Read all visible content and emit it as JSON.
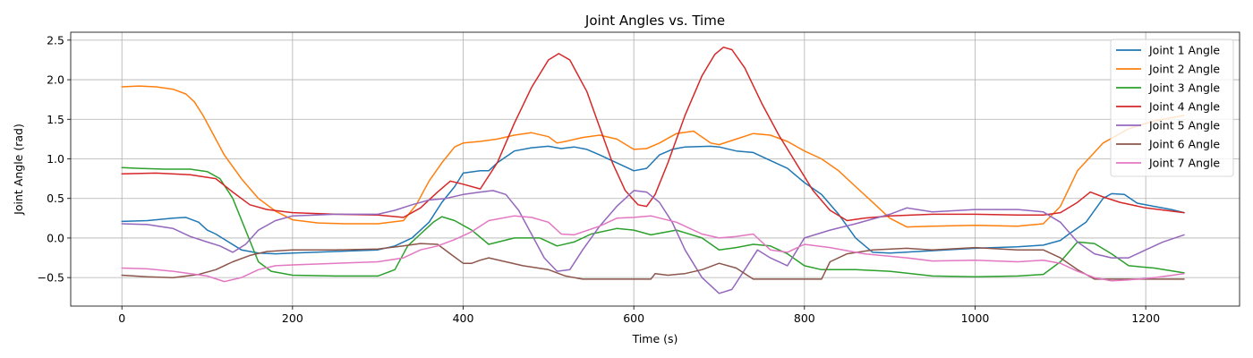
{
  "chart_data": {
    "type": "line",
    "title": "Joint Angles vs. Time",
    "xlabel": "Time (s)",
    "ylabel": "Joint Angle (rad)",
    "xlim": [
      -60,
      1310
    ],
    "ylim": [
      -0.86,
      2.6
    ],
    "xticks": [
      0,
      200,
      400,
      600,
      800,
      1000,
      1200
    ],
    "yticks": [
      -0.5,
      0.0,
      0.5,
      1.0,
      1.5,
      2.0,
      2.5
    ],
    "ytick_labels": [
      "−0.5",
      "0.0",
      "0.5",
      "1.0",
      "1.5",
      "2.0",
      "2.5"
    ],
    "grid": true,
    "legend_position": "top-right",
    "series": [
      {
        "name": "Joint 1 Angle",
        "color": "#1f77b4",
        "x": [
          0,
          30,
          60,
          75,
          90,
          100,
          110,
          125,
          140,
          160,
          180,
          200,
          250,
          300,
          320,
          340,
          360,
          375,
          390,
          400,
          420,
          430,
          440,
          460,
          480,
          500,
          515,
          530,
          545,
          560,
          580,
          600,
          615,
          630,
          645,
          660,
          690,
          700,
          720,
          740,
          760,
          780,
          800,
          820,
          840,
          860,
          880,
          900,
          950,
          1000,
          1050,
          1080,
          1100,
          1110,
          1130,
          1150,
          1160,
          1175,
          1190,
          1210,
          1230,
          1245
        ],
        "y": [
          0.21,
          0.22,
          0.25,
          0.26,
          0.2,
          0.1,
          0.05,
          -0.05,
          -0.15,
          -0.19,
          -0.2,
          -0.19,
          -0.17,
          -0.15,
          -0.1,
          0.0,
          0.2,
          0.45,
          0.65,
          0.82,
          0.85,
          0.85,
          0.95,
          1.1,
          1.14,
          1.16,
          1.13,
          1.15,
          1.12,
          1.05,
          0.95,
          0.85,
          0.88,
          1.05,
          1.12,
          1.15,
          1.16,
          1.15,
          1.1,
          1.08,
          0.98,
          0.88,
          0.7,
          0.55,
          0.3,
          0.0,
          -0.18,
          -0.19,
          -0.16,
          -0.13,
          -0.11,
          -0.09,
          -0.03,
          0.05,
          0.2,
          0.5,
          0.56,
          0.55,
          0.44,
          0.4,
          0.36,
          0.32
        ]
      },
      {
        "name": "Joint 2 Angle",
        "color": "#ff7f0e",
        "x": [
          0,
          20,
          40,
          60,
          75,
          85,
          95,
          105,
          120,
          140,
          160,
          180,
          200,
          230,
          260,
          300,
          330,
          345,
          360,
          375,
          390,
          400,
          420,
          440,
          460,
          480,
          500,
          510,
          520,
          540,
          560,
          580,
          600,
          615,
          630,
          650,
          670,
          690,
          700,
          720,
          740,
          760,
          780,
          800,
          820,
          840,
          860,
          880,
          900,
          920,
          950,
          1000,
          1050,
          1080,
          1100,
          1120,
          1150,
          1180,
          1210,
          1245
        ],
        "y": [
          1.91,
          1.92,
          1.91,
          1.88,
          1.82,
          1.72,
          1.55,
          1.35,
          1.05,
          0.75,
          0.5,
          0.34,
          0.23,
          0.19,
          0.18,
          0.18,
          0.22,
          0.42,
          0.72,
          0.95,
          1.15,
          1.2,
          1.22,
          1.25,
          1.3,
          1.33,
          1.28,
          1.2,
          1.22,
          1.27,
          1.3,
          1.25,
          1.12,
          1.13,
          1.2,
          1.32,
          1.35,
          1.2,
          1.18,
          1.25,
          1.32,
          1.3,
          1.22,
          1.1,
          1.0,
          0.85,
          0.65,
          0.45,
          0.25,
          0.14,
          0.15,
          0.16,
          0.15,
          0.18,
          0.4,
          0.85,
          1.2,
          1.38,
          1.48,
          1.55
        ]
      },
      {
        "name": "Joint 3 Angle",
        "color": "#2ca02c",
        "x": [
          0,
          20,
          50,
          80,
          100,
          115,
          130,
          145,
          160,
          175,
          200,
          250,
          300,
          320,
          335,
          350,
          365,
          375,
          390,
          410,
          430,
          460,
          490,
          510,
          530,
          550,
          580,
          600,
          620,
          650,
          680,
          700,
          720,
          740,
          760,
          780,
          800,
          820,
          860,
          900,
          950,
          1000,
          1050,
          1080,
          1100,
          1120,
          1140,
          1160,
          1180,
          1210,
          1245
        ],
        "y": [
          0.89,
          0.88,
          0.87,
          0.87,
          0.84,
          0.75,
          0.5,
          0.1,
          -0.3,
          -0.42,
          -0.47,
          -0.48,
          -0.48,
          -0.4,
          -0.1,
          0.05,
          0.2,
          0.27,
          0.22,
          0.1,
          -0.08,
          0.0,
          0.0,
          -0.1,
          -0.05,
          0.05,
          0.12,
          0.1,
          0.04,
          0.1,
          0.0,
          -0.15,
          -0.12,
          -0.08,
          -0.1,
          -0.2,
          -0.35,
          -0.4,
          -0.4,
          -0.42,
          -0.48,
          -0.49,
          -0.48,
          -0.46,
          -0.3,
          -0.05,
          -0.07,
          -0.2,
          -0.35,
          -0.38,
          -0.44
        ]
      },
      {
        "name": "Joint 4 Angle",
        "color": "#d62728",
        "x": [
          0,
          40,
          80,
          110,
          130,
          150,
          170,
          200,
          250,
          300,
          330,
          350,
          370,
          385,
          400,
          420,
          440,
          460,
          480,
          500,
          512,
          525,
          545,
          560,
          575,
          590,
          605,
          615,
          625,
          640,
          660,
          680,
          695,
          705,
          715,
          730,
          750,
          770,
          790,
          810,
          830,
          850,
          870,
          900,
          950,
          1000,
          1050,
          1080,
          1100,
          1120,
          1135,
          1150,
          1170,
          1200,
          1245
        ],
        "y": [
          0.81,
          0.82,
          0.8,
          0.75,
          0.58,
          0.42,
          0.36,
          0.32,
          0.3,
          0.29,
          0.26,
          0.38,
          0.58,
          0.72,
          0.68,
          0.62,
          0.95,
          1.45,
          1.9,
          2.25,
          2.33,
          2.25,
          1.85,
          1.4,
          0.95,
          0.6,
          0.42,
          0.4,
          0.55,
          0.95,
          1.55,
          2.05,
          2.32,
          2.41,
          2.38,
          2.15,
          1.7,
          1.3,
          0.95,
          0.6,
          0.35,
          0.22,
          0.25,
          0.28,
          0.3,
          0.3,
          0.29,
          0.29,
          0.32,
          0.45,
          0.58,
          0.52,
          0.45,
          0.38,
          0.32
        ]
      },
      {
        "name": "Joint 5 Angle",
        "color": "#9467bd",
        "x": [
          0,
          30,
          60,
          80,
          100,
          115,
          130,
          145,
          160,
          180,
          200,
          250,
          300,
          320,
          340,
          360,
          380,
          400,
          420,
          435,
          450,
          465,
          480,
          495,
          510,
          525,
          540,
          560,
          580,
          600,
          615,
          630,
          645,
          660,
          680,
          700,
          715,
          730,
          745,
          760,
          780,
          800,
          830,
          860,
          900,
          920,
          950,
          1000,
          1050,
          1080,
          1100,
          1120,
          1140,
          1160,
          1180,
          1200,
          1220,
          1245
        ],
        "y": [
          0.18,
          0.17,
          0.12,
          0.02,
          -0.05,
          -0.1,
          -0.18,
          -0.08,
          0.1,
          0.22,
          0.28,
          0.3,
          0.3,
          0.35,
          0.42,
          0.48,
          0.5,
          0.55,
          0.58,
          0.6,
          0.55,
          0.35,
          0.05,
          -0.25,
          -0.42,
          -0.4,
          -0.15,
          0.15,
          0.4,
          0.6,
          0.58,
          0.45,
          0.2,
          -0.15,
          -0.5,
          -0.7,
          -0.65,
          -0.4,
          -0.15,
          -0.25,
          -0.35,
          0.0,
          0.1,
          0.18,
          0.3,
          0.38,
          0.33,
          0.36,
          0.36,
          0.33,
          0.2,
          -0.05,
          -0.2,
          -0.25,
          -0.25,
          -0.15,
          -0.05,
          0.04
        ]
      },
      {
        "name": "Joint 6 Angle",
        "color": "#8c564b",
        "x": [
          0,
          30,
          60,
          90,
          110,
          130,
          150,
          170,
          200,
          250,
          300,
          330,
          350,
          370,
          385,
          400,
          410,
          420,
          430,
          450,
          470,
          500,
          520,
          540,
          560,
          600,
          620,
          625,
          640,
          660,
          680,
          700,
          720,
          740,
          760,
          780,
          800,
          820,
          830,
          850,
          880,
          920,
          950,
          1000,
          1050,
          1080,
          1100,
          1120,
          1140,
          1160,
          1200,
          1245
        ],
        "y": [
          -0.47,
          -0.49,
          -0.5,
          -0.46,
          -0.4,
          -0.3,
          -0.22,
          -0.17,
          -0.15,
          -0.15,
          -0.14,
          -0.1,
          -0.07,
          -0.08,
          -0.2,
          -0.32,
          -0.32,
          -0.28,
          -0.25,
          -0.3,
          -0.35,
          -0.4,
          -0.48,
          -0.52,
          -0.52,
          -0.52,
          -0.52,
          -0.45,
          -0.47,
          -0.45,
          -0.4,
          -0.32,
          -0.38,
          -0.52,
          -0.52,
          -0.52,
          -0.52,
          -0.52,
          -0.3,
          -0.2,
          -0.15,
          -0.13,
          -0.15,
          -0.12,
          -0.15,
          -0.15,
          -0.25,
          -0.4,
          -0.52,
          -0.52,
          -0.52,
          -0.52
        ]
      },
      {
        "name": "Joint 7 Angle",
        "color": "#e377c2",
        "x": [
          0,
          30,
          60,
          80,
          100,
          120,
          140,
          160,
          180,
          200,
          250,
          300,
          330,
          350,
          370,
          390,
          410,
          430,
          460,
          480,
          500,
          515,
          530,
          560,
          580,
          600,
          620,
          650,
          680,
          700,
          720,
          740,
          760,
          780,
          800,
          830,
          870,
          920,
          950,
          1000,
          1050,
          1080,
          1100,
          1120,
          1140,
          1160,
          1180,
          1210,
          1245
        ],
        "y": [
          -0.38,
          -0.39,
          -0.42,
          -0.45,
          -0.48,
          -0.55,
          -0.5,
          -0.4,
          -0.35,
          -0.34,
          -0.32,
          -0.3,
          -0.25,
          -0.15,
          -0.1,
          -0.02,
          0.08,
          0.22,
          0.28,
          0.26,
          0.2,
          0.05,
          0.04,
          0.15,
          0.25,
          0.26,
          0.28,
          0.2,
          0.05,
          0.0,
          0.02,
          0.05,
          -0.15,
          -0.18,
          -0.08,
          -0.12,
          -0.2,
          -0.25,
          -0.29,
          -0.28,
          -0.3,
          -0.28,
          -0.32,
          -0.42,
          -0.5,
          -0.54,
          -0.53,
          -0.5,
          -0.45
        ]
      }
    ]
  }
}
